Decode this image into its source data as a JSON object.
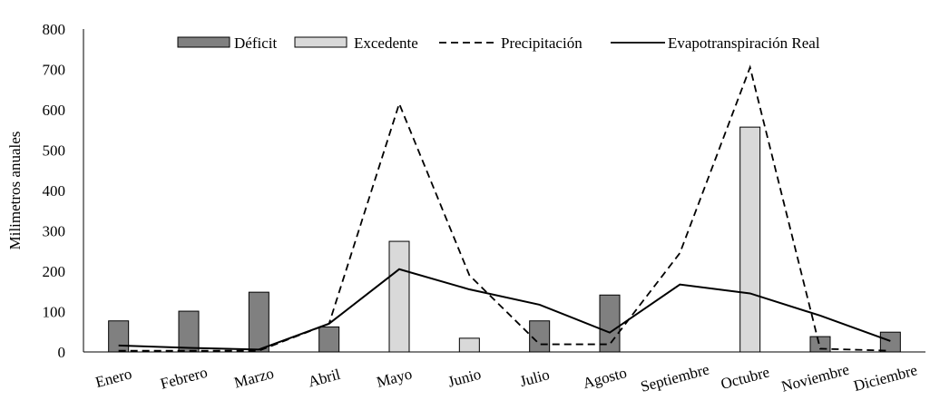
{
  "chart_data": {
    "type": "bar",
    "categories": [
      "Enero",
      "Febrero",
      "Marzo",
      "Abril",
      "Mayo",
      "Junio",
      "Julio",
      "Agosto",
      "Septiembre",
      "Octubre",
      "Noviembre",
      "Diciembre"
    ],
    "ylabel": "Milimetros anuales",
    "xlabel": "",
    "ylim": [
      0,
      800
    ],
    "yticks": [
      0,
      100,
      200,
      300,
      400,
      500,
      600,
      700,
      800
    ],
    "legend_position": "top",
    "grid": false,
    "series": [
      {
        "name": "Déficit",
        "type": "bar",
        "color": "#808080",
        "values": [
          77,
          101,
          148,
          62,
          0,
          0,
          77,
          141,
          0,
          0,
          38,
          49
        ]
      },
      {
        "name": "Excedente",
        "type": "bar",
        "color": "#d9d9d9",
        "values": [
          0,
          0,
          0,
          0,
          274,
          34,
          0,
          0,
          0,
          557,
          0,
          0
        ]
      },
      {
        "name": "Precipitación",
        "type": "line",
        "style": "dashed",
        "color": "#000000",
        "values": [
          3,
          3,
          3,
          70,
          615,
          190,
          19,
          19,
          245,
          705,
          8,
          3
        ]
      },
      {
        "name": "Evapotranspiración Real",
        "type": "line",
        "style": "solid",
        "color": "#000000",
        "values": [
          16,
          10,
          6,
          70,
          205,
          155,
          117,
          48,
          167,
          145,
          90,
          27
        ]
      }
    ]
  }
}
